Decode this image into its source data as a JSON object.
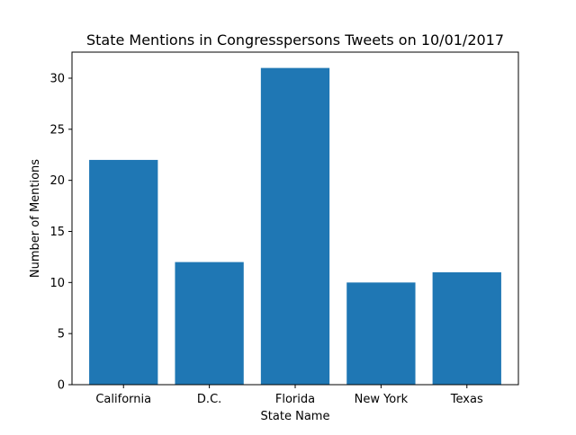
{
  "chart_data": {
    "type": "bar",
    "title": "State Mentions in Congresspersons Tweets on 10/01/2017",
    "xlabel": "State Name",
    "ylabel": "Number of Mentions",
    "categories": [
      "California",
      "D.C.",
      "Florida",
      "New York",
      "Texas"
    ],
    "values": [
      22,
      12,
      31,
      10,
      11
    ],
    "ylim": [
      0,
      32.55
    ],
    "yticks": [
      0,
      5,
      10,
      15,
      20,
      25,
      30
    ],
    "grid": false,
    "legend": "none",
    "colors": {
      "bar": "#1f77b4",
      "axis": "#000000",
      "background": "#ffffff"
    }
  }
}
